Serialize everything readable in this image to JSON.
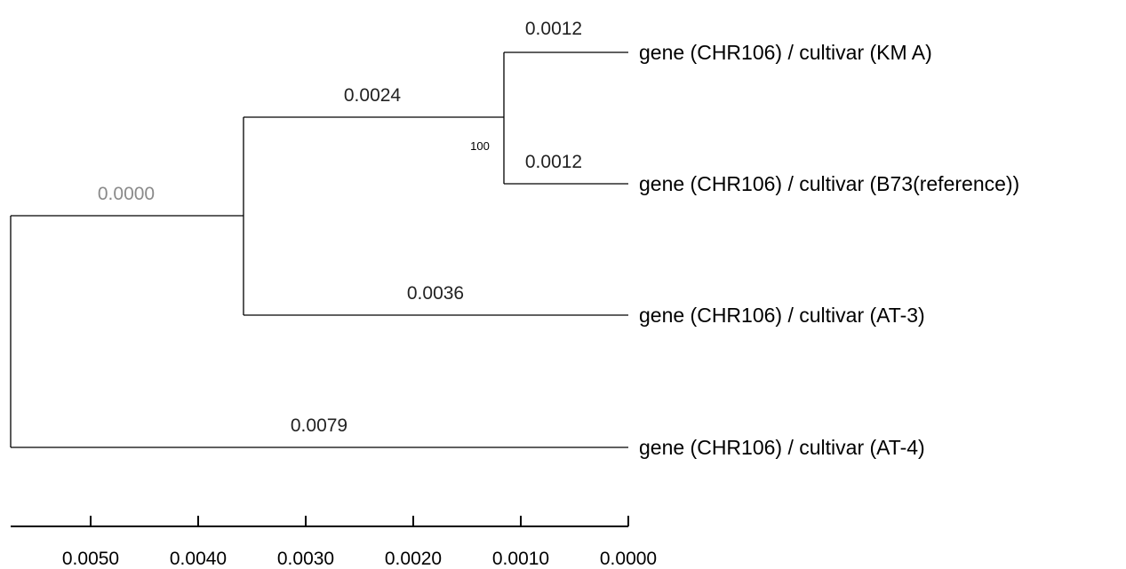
{
  "tree": {
    "taxa": [
      "gene (CHR106) / cultivar (KM A)",
      "gene (CHR106) / cultivar (B73(reference))",
      "gene (CHR106) / cultivar (AT-3)",
      "gene (CHR106) / cultivar (AT-4)"
    ],
    "branch_lengths": {
      "km_a": "0.0012",
      "b73": "0.0012",
      "km_b73_clade": "0.0024",
      "at3": "0.0036",
      "ingroup_clade": "0.0000",
      "at4": "0.0079"
    },
    "bootstrap": {
      "km_b73_clade": "100"
    }
  },
  "scale_axis": {
    "ticks": [
      0.005,
      0.004,
      0.003,
      0.002,
      0.001,
      0.0
    ],
    "tick_labels": [
      "0.0050",
      "0.0040",
      "0.0030",
      "0.0020",
      "0.0010",
      "0.0000"
    ]
  }
}
